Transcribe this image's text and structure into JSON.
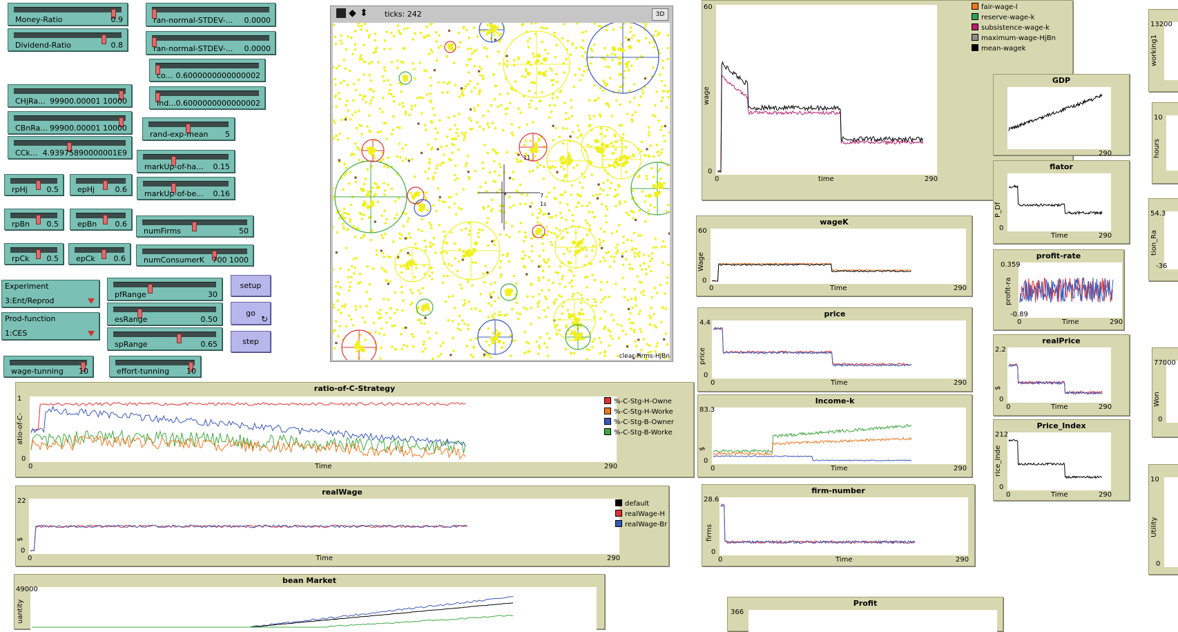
{
  "sliders": [
    {
      "label": "Money-Ratio",
      "value": "0.9",
      "pos": 0.95
    },
    {
      "label": "Dividend-Ratio",
      "value": "0.8",
      "pos": 0.85
    },
    {
      "label": "ran-normal-STDEV-...",
      "value": "0.0000",
      "pos": 0.0
    },
    {
      "label": "ran-normal-STDEV-...",
      "value": "0.0000",
      "pos": 0.0
    },
    {
      "label": "co...",
      "value": "0.6000000000000002",
      "pos": 0.0
    },
    {
      "label": "Ind...",
      "value": "0.6000000000000002",
      "pos": 0.0
    },
    {
      "label": "CHjRa...",
      "value": "99900.00001 10000",
      "pos": 0.98
    },
    {
      "label": "CBnRa...",
      "value": "99900.00001 10000",
      "pos": 0.98
    },
    {
      "label": "CCk...",
      "value": "4.93975890000001E9",
      "pos": 0.5
    },
    {
      "label": "rand-exp-mean",
      "value": "5",
      "pos": 0.5
    },
    {
      "label": "markUp-of-ha...",
      "value": "0.15",
      "pos": 0.35
    },
    {
      "label": "markUp-of-be...",
      "value": "0.16",
      "pos": 0.35
    },
    {
      "label": "rpHj",
      "value": "0.5",
      "pos": 0.6
    },
    {
      "label": "epHj",
      "value": "0.6",
      "pos": 0.6
    },
    {
      "label": "rpBn",
      "value": "0.5",
      "pos": 0.6
    },
    {
      "label": "epBn",
      "value": "0.6",
      "pos": 0.6
    },
    {
      "label": "numFirms",
      "value": "50",
      "pos": 0.5
    },
    {
      "label": "rpCk",
      "value": "0.5",
      "pos": 0.6
    },
    {
      "label": "epCk",
      "value": "0.6",
      "pos": 0.6
    },
    {
      "label": "numConsumerK",
      "value": "700 1000",
      "pos": 0.7
    },
    {
      "label": "pfRange",
      "value": "30",
      "pos": 0.35
    },
    {
      "label": "esRange",
      "value": "0.50",
      "pos": 0.25
    },
    {
      "label": "spRange",
      "value": "0.65",
      "pos": 0.65
    },
    {
      "label": "wage-tunning",
      "value": "10",
      "pos": 0.98
    },
    {
      "label": "effort-tunning",
      "value": "10",
      "pos": 0.98
    }
  ],
  "choosers": [
    {
      "label": "Experiment",
      "selected": "3:Ent/Reprod"
    },
    {
      "label": "Prod-function",
      "selected": "1:CES"
    }
  ],
  "buttons": {
    "setup": "setup",
    "go": "go",
    "step": "step",
    "forever_icon": "↻"
  },
  "world": {
    "ticks_label": "ticks: 242",
    "btn3d": "3D",
    "footer": "clear-Firms-HjBn",
    "labels": [
      "11",
      "7",
      "1s"
    ]
  },
  "plots": {
    "wage": {
      "title": "",
      "ylabel": "wage",
      "xlabel": "time",
      "ymax": "60",
      "ymin": "0",
      "xmin": "0",
      "xmax": "290",
      "legend": [
        {
          "name": "fair-wage-l",
          "color": "#f07820"
        },
        {
          "name": "reserve-wage-k",
          "color": "#2da05a"
        },
        {
          "name": "subsistence-wage-k",
          "color": "#b8206e"
        },
        {
          "name": "maximum-wage-HjBn",
          "color": "#8c8c8c"
        },
        {
          "name": "mean-wagek",
          "color": "#000000"
        }
      ]
    },
    "wageK": {
      "title": "wageK",
      "ylabel": "Wage",
      "xlabel": "Time",
      "ymax": "60",
      "ymin": "0",
      "xmin": "0",
      "xmax": "290"
    },
    "price": {
      "title": "price",
      "ylabel": "price",
      "xlabel": "Time",
      "ymax": "4.4",
      "ymin": "0",
      "xmin": "0",
      "xmax": "290"
    },
    "income": {
      "title": "Income-k",
      "ylabel": "$",
      "xlabel": "Time",
      "ymax": "83.3",
      "ymin": "0",
      "xmin": "0",
      "xmax": "290"
    },
    "firm": {
      "title": "firm-number",
      "ylabel": "firms",
      "xlabel": "Time",
      "ymax": "28.6",
      "ymin": "0",
      "xmin": "0",
      "xmax": "290"
    },
    "profit": {
      "title": "Profit",
      "ymax": "366"
    },
    "gdp": {
      "title": "GDP",
      "xmax": "290"
    },
    "deflator": {
      "title": "flator",
      "ylabel": "P_Df",
      "xlabel": "Time",
      "ymin": "0",
      "xmax": "290"
    },
    "profitrate": {
      "title": "profit-rate",
      "ylabel": "profit-ra",
      "xlabel": "Time",
      "ymax": "0.359",
      "ymin": "-0.89",
      "xmin": "0",
      "xmax": "290"
    },
    "realprice": {
      "title": "realPrice",
      "ylabel": "$",
      "xlabel": "Time",
      "ymax": "2.2",
      "ymin": "0",
      "xmin": "0",
      "xmax": "290"
    },
    "priceindex": {
      "title": "Price_Index",
      "ylabel": "rice_Inde",
      "xlabel": "Time",
      "ymax": "212",
      "ymin": "0",
      "xmin": "0",
      "xmax": "290"
    },
    "ratio": {
      "title": "ratio-of-C-Strategy",
      "ylabel": "atio-of-C-",
      "xlabel": "Time",
      "ymax": "1",
      "ymin": "0",
      "xmin": "0",
      "xmax": "290",
      "legend": [
        {
          "name": "%-C-Stg-H-Owne",
          "color": "#e03030"
        },
        {
          "name": "%-C-Stg-H-Worke",
          "color": "#f07820"
        },
        {
          "name": "%-C-Stg-B-Owner",
          "color": "#3858b8"
        },
        {
          "name": "%-C-Stg-B-Worke",
          "color": "#40a840"
        }
      ]
    },
    "realwage": {
      "title": "realWage",
      "ylabel": "$",
      "xlabel": "Time",
      "ymax": "22",
      "ymin": "0",
      "xmin": "0",
      "xmax": "290",
      "legend": [
        {
          "name": "default",
          "color": "#000000"
        },
        {
          "name": "realWage-H",
          "color": "#e03030"
        },
        {
          "name": "realWage-Br",
          "color": "#3858b8"
        }
      ]
    },
    "bean": {
      "title": "bean Market",
      "ylabel": "uantity",
      "ymax": "49000"
    },
    "right1": {
      "ylabel": "working1",
      "ymax": "13200"
    },
    "right2": {
      "ylabel": "hours",
      "ymax": "10"
    },
    "right3": {
      "ylabel": "tion_Ra",
      "ymax": "54.3",
      "ymin": "-36"
    },
    "right4": {
      "ylabel": "Won",
      "ymax": "77000",
      "ymin": "0"
    },
    "right5": {
      "ylabel": "Utility",
      "ymax": "10",
      "ymin": "0"
    }
  }
}
